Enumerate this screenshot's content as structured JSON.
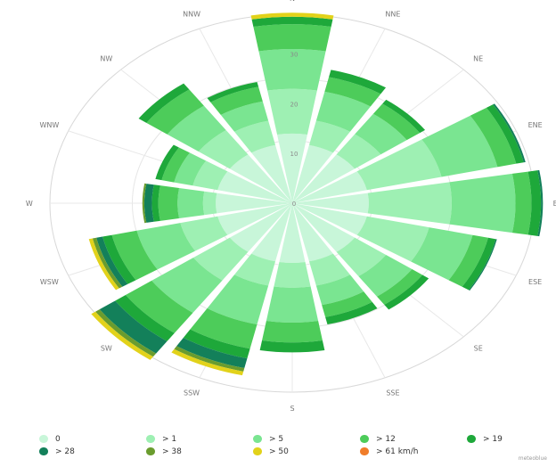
{
  "chart_data": {
    "type": "windrose",
    "directions": [
      "N",
      "NNE",
      "NE",
      "ENE",
      "E",
      "ESE",
      "SE",
      "SSE",
      "S",
      "SSW",
      "SW",
      "WSW",
      "W",
      "WNW",
      "NW",
      "NNW"
    ],
    "radial_ticks": [
      {
        "value": 0,
        "label": "0"
      },
      {
        "value": 10,
        "label": "10"
      },
      {
        "value": 20,
        "label": "20"
      },
      {
        "value": 30,
        "label": "30"
      }
    ],
    "rmax": 38,
    "grid": true,
    "legend_position": "bottom",
    "series": [
      {
        "name": "0",
        "color": "#c8f6d9",
        "values": [
          14.0,
          12.0,
          12.0,
          12.0,
          12.0,
          12.0,
          12.0,
          12.0,
          12.0,
          12.0,
          12.0,
          12.0,
          12.0,
          12.0,
          12.0,
          12.0
        ]
      },
      {
        "name": "> 1",
        "color": "#9ef0b3",
        "values": [
          9.0,
          5.0,
          5.0,
          12.0,
          13.0,
          10.0,
          6.0,
          5.0,
          5.0,
          5.0,
          7.0,
          6.0,
          2.0,
          4.0,
          6.0,
          5.0
        ]
      },
      {
        "name": "> 5",
        "color": "#7ae591",
        "values": [
          8.0,
          6.0,
          5.0,
          9.0,
          10.0,
          7.0,
          5.0,
          4.0,
          7.0,
          8.0,
          8.0,
          7.0,
          4.0,
          3.0,
          6.0,
          4.0
        ]
      },
      {
        "name": "> 12",
        "color": "#4dcc5a",
        "values": [
          5.0,
          3.0,
          2.5,
          3.0,
          2.5,
          2.5,
          2.0,
          2.5,
          4.0,
          5.0,
          5.0,
          4.0,
          3.0,
          2.0,
          4.0,
          3.0
        ]
      },
      {
        "name": "> 19",
        "color": "#1ea83a",
        "values": [
          1.5,
          1.5,
          1.0,
          1.2,
          1.5,
          1.2,
          1.2,
          1.5,
          2.0,
          2.0,
          2.0,
          1.5,
          1.0,
          1.0,
          1.5,
          1.0
        ]
      },
      {
        "name": "> 28",
        "color": "#13805a",
        "values": [
          0.0,
          0.0,
          0.0,
          0.3,
          0.3,
          0.2,
          0.0,
          0.0,
          0.0,
          2.0,
          3.0,
          1.0,
          1.2,
          0.0,
          0.0,
          0.0
        ]
      },
      {
        "name": "> 38",
        "color": "#6a9c2e",
        "values": [
          0.0,
          0.0,
          0.0,
          0.0,
          0.0,
          0.0,
          0.0,
          0.0,
          0.0,
          0.7,
          0.8,
          0.6,
          0.3,
          0.0,
          0.0,
          0.0
        ]
      },
      {
        "name": "> 50",
        "color": "#e2d21a",
        "values": [
          0.8,
          0.0,
          0.0,
          0.0,
          0.0,
          0.0,
          0.0,
          0.0,
          0.0,
          0.8,
          0.8,
          0.6,
          0.0,
          0.0,
          0.0,
          0.0
        ]
      },
      {
        "name": "> 61 km/h",
        "color": "#f07d2a",
        "values": [
          0.0,
          0.0,
          0.0,
          0.0,
          0.0,
          0.0,
          0.0,
          0.0,
          0.0,
          0.0,
          0.0,
          0.0,
          0.0,
          0.0,
          0.0,
          0.0
        ]
      }
    ]
  },
  "legend": {
    "items": [
      {
        "label": "0",
        "color": "#c8f6d9"
      },
      {
        "label": "> 1",
        "color": "#9ef0b3"
      },
      {
        "label": "> 5",
        "color": "#7ae591"
      },
      {
        "label": "> 12",
        "color": "#4dcc5a"
      },
      {
        "label": "> 19",
        "color": "#1ea83a"
      },
      {
        "label": "> 28",
        "color": "#13805a"
      },
      {
        "label": "> 38",
        "color": "#6a9c2e"
      },
      {
        "label": "> 50",
        "color": "#e2d21a"
      },
      {
        "label": "> 61 km/h",
        "color": "#f07d2a"
      }
    ]
  },
  "credit": "meteoblue"
}
